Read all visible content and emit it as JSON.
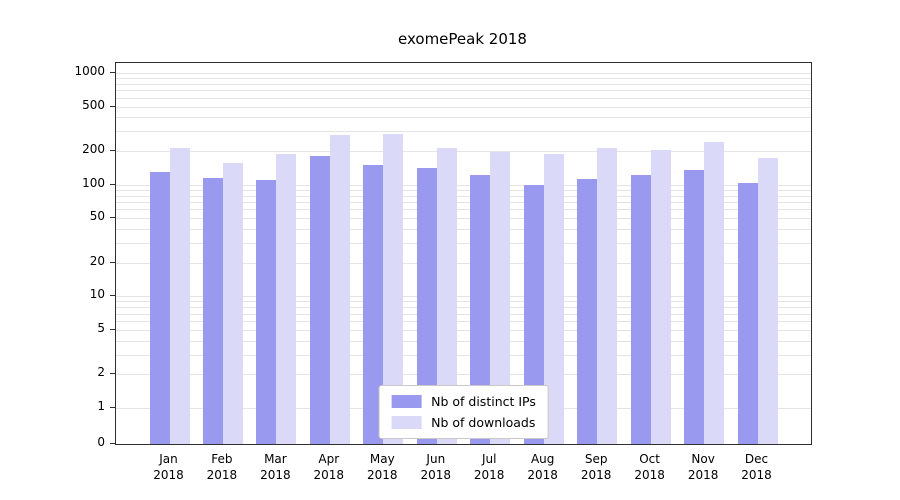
{
  "title": "exomePeak 2018",
  "chart_data": {
    "type": "bar",
    "title": "exomePeak 2018",
    "scale": "log",
    "grid": true,
    "grid_color": "#e4e4e4",
    "axis_color": "#2f2f2f",
    "background": "#ffffff",
    "legend_position": "bottom-center",
    "year": "2018",
    "categories": [
      "Jan",
      "Feb",
      "Mar",
      "Apr",
      "May",
      "Jun",
      "Jul",
      "Aug",
      "Sep",
      "Oct",
      "Nov",
      "Dec"
    ],
    "yticks": [
      0,
      1,
      2,
      5,
      10,
      20,
      50,
      100,
      200,
      500,
      1000
    ],
    "ylim": [
      0,
      1000
    ],
    "series": [
      {
        "name": "Nb of distinct IPs",
        "color": "#9999f0",
        "values": [
          130,
          115,
          110,
          180,
          150,
          140,
          122,
          100,
          112,
          122,
          135,
          103
        ]
      },
      {
        "name": "Nb of downloads",
        "color": "#dadaf8",
        "values": [
          215,
          155,
          190,
          280,
          285,
          215,
          198,
          190,
          215,
          205,
          240,
          175
        ]
      }
    ]
  }
}
